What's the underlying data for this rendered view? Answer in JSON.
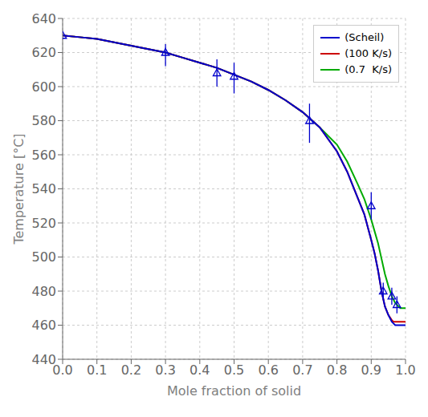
{
  "chart_data": {
    "type": "line",
    "title": "",
    "xlabel": "Mole fraction of solid",
    "ylabel": "Temperature [°C]",
    "xlim": [
      0.0,
      1.0
    ],
    "ylim": [
      440,
      640
    ],
    "xticks": [
      {
        "value": 0.0,
        "label": "0.0"
      },
      0.1,
      0.2,
      0.3,
      0.4,
      0.5,
      0.6,
      0.7,
      0.8,
      0.9,
      {
        "value": 1.0,
        "label": "1.0"
      }
    ],
    "yticks": [
      440,
      460,
      480,
      500,
      520,
      540,
      560,
      580,
      600,
      620,
      640
    ],
    "grid": true,
    "legend": "upper right",
    "series": [
      {
        "name": "(Scheil)",
        "color": "#0000cc",
        "x": [
          0.0,
          0.05,
          0.1,
          0.15,
          0.2,
          0.25,
          0.3,
          0.35,
          0.4,
          0.45,
          0.5,
          0.55,
          0.6,
          0.65,
          0.7,
          0.75,
          0.8,
          0.83,
          0.86,
          0.88,
          0.9,
          0.91,
          0.92,
          0.93,
          0.94,
          0.95,
          0.96,
          0.965,
          0.97,
          0.975,
          0.98,
          0.985,
          0.99,
          1.0
        ],
        "values": [
          630,
          629,
          628,
          626,
          624,
          622,
          620,
          617,
          614,
          611,
          607,
          603,
          598,
          592,
          585,
          576,
          562,
          550,
          535,
          525,
          510,
          502,
          492,
          480,
          471,
          466,
          462,
          461,
          460,
          460,
          460,
          460,
          460,
          460
        ]
      },
      {
        "name": "(100 K/s)",
        "color": "#cc0000",
        "x": [
          0.0,
          0.05,
          0.1,
          0.15,
          0.2,
          0.25,
          0.3,
          0.35,
          0.4,
          0.45,
          0.5,
          0.55,
          0.6,
          0.65,
          0.7,
          0.75,
          0.8,
          0.83,
          0.86,
          0.88,
          0.9,
          0.91,
          0.92,
          0.93,
          0.94,
          0.95,
          0.96,
          0.965,
          0.97,
          0.975,
          0.98,
          0.985,
          0.99,
          1.0
        ],
        "values": [
          630,
          629,
          628,
          626,
          624,
          622,
          620,
          617,
          614,
          611,
          607,
          603,
          598,
          592,
          585,
          576,
          562,
          550,
          535,
          525,
          510,
          502,
          492,
          480,
          471,
          466,
          463,
          462,
          462,
          462,
          462,
          462,
          462,
          462
        ]
      },
      {
        "name": "(0.7  K/s)",
        "color": "#00aa00",
        "x": [
          0.0,
          0.05,
          0.1,
          0.15,
          0.2,
          0.25,
          0.3,
          0.35,
          0.4,
          0.45,
          0.5,
          0.55,
          0.6,
          0.65,
          0.7,
          0.75,
          0.8,
          0.83,
          0.86,
          0.88,
          0.9,
          0.91,
          0.92,
          0.93,
          0.94,
          0.95,
          0.96,
          0.97,
          0.975,
          0.98,
          0.985,
          0.99,
          0.995,
          1.0
        ],
        "values": [
          630,
          629,
          628,
          626,
          624,
          622,
          620,
          617,
          614,
          611,
          607,
          603,
          598,
          592,
          585,
          576,
          566,
          556,
          543,
          534,
          522,
          515,
          508,
          499,
          490,
          483,
          477,
          473,
          472,
          471,
          470,
          470,
          470,
          470
        ]
      }
    ],
    "points": {
      "color": "#0000cc",
      "marker": "triangle",
      "x": [
        0.0,
        0.3,
        0.45,
        0.5,
        0.72,
        0.9,
        0.935,
        0.96,
        0.975
      ],
      "values": [
        630,
        620,
        608,
        606,
        580,
        530,
        480,
        477,
        472
      ],
      "error_low": [
        0,
        8,
        8,
        10,
        13,
        8,
        5,
        5,
        5
      ],
      "error_high": [
        0,
        5,
        8,
        8,
        10,
        8,
        5,
        5,
        5
      ]
    }
  }
}
